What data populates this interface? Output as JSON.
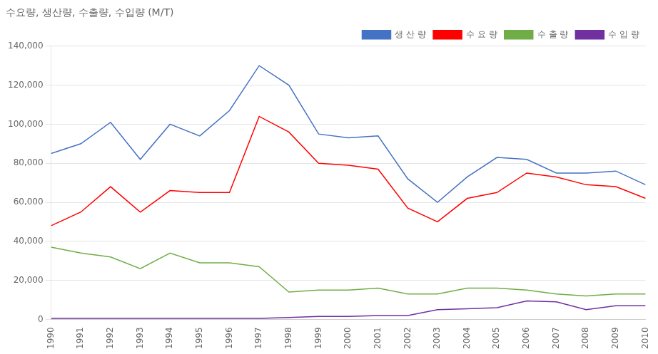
{
  "chart_data": {
    "type": "line",
    "title": "수요량, 생산량, 수출량, 수입량 (M/T)",
    "x": [
      1990,
      1991,
      1992,
      1993,
      1994,
      1995,
      1996,
      1997,
      1998,
      1999,
      2000,
      2001,
      2002,
      2003,
      2004,
      2005,
      2006,
      2007,
      2008,
      2009,
      2010
    ],
    "xlim": [
      1990,
      2010
    ],
    "xticks": [
      1990,
      1991,
      1992,
      1993,
      1994,
      1995,
      1996,
      1997,
      1998,
      1999,
      2000,
      2001,
      2002,
      2003,
      2004,
      2005,
      2006,
      2007,
      2008,
      2009,
      2010
    ],
    "ylim": [
      0,
      140000
    ],
    "yticks": [
      0,
      {
        "value": 20000,
        "label": "20,000"
      },
      {
        "value": 40000,
        "label": "40,000"
      },
      {
        "value": 60000,
        "label": "60,000"
      },
      {
        "value": 80000,
        "label": "80,000"
      },
      {
        "value": 100000,
        "label": "100,000"
      },
      {
        "value": 120000,
        "label": "120,000"
      },
      {
        "value": 140000,
        "label": "140,000"
      }
    ],
    "grid": "y",
    "legend": "upper right",
    "series": [
      {
        "name": "생 산 량",
        "color": "#4472C4",
        "values": [
          85000,
          90000,
          101000,
          82000,
          100000,
          94000,
          107000,
          130000,
          120000,
          95000,
          93000,
          94000,
          72000,
          60000,
          73000,
          83000,
          82000,
          75000,
          75000,
          76000,
          69000
        ]
      },
      {
        "name": "수 요 량",
        "color": "#FF0000",
        "values": [
          48000,
          55000,
          68000,
          55000,
          66000,
          65000,
          65000,
          104000,
          96000,
          80000,
          79000,
          77000,
          57000,
          50000,
          62000,
          65000,
          75000,
          73000,
          69000,
          68000,
          62000
        ]
      },
      {
        "name": "수 출 량",
        "color": "#70AD47",
        "values": [
          37000,
          34000,
          32000,
          26000,
          34000,
          29000,
          29000,
          27000,
          14000,
          15000,
          15000,
          16000,
          13000,
          13000,
          16000,
          16000,
          15000,
          13000,
          12000,
          13000,
          13000
        ]
      },
      {
        "name": "수 입 량",
        "color": "#7030A0",
        "values": [
          500,
          500,
          500,
          500,
          500,
          500,
          500,
          500,
          1000,
          1500,
          1500,
          2000,
          2000,
          5000,
          5500,
          6000,
          9500,
          9000,
          5000,
          7000,
          7000
        ]
      }
    ]
  }
}
